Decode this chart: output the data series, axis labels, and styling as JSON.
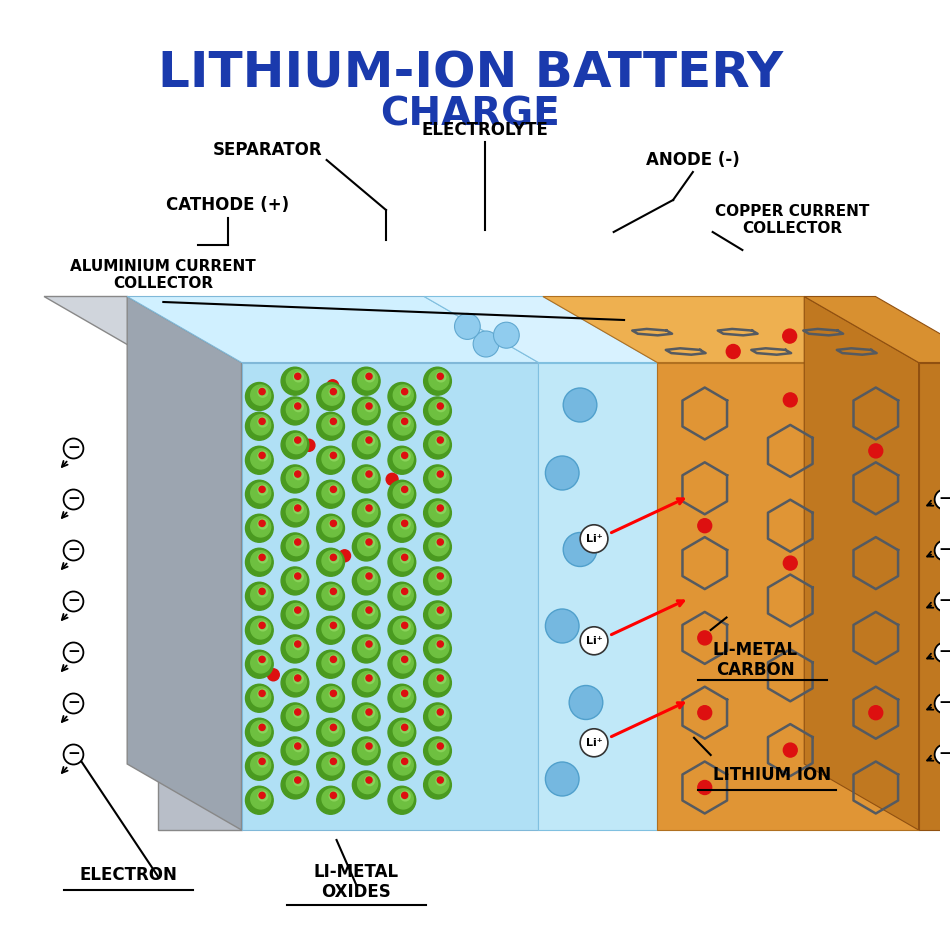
{
  "title_line1": "LITHIUM-ION BATTERY",
  "title_line2": "CHARGE",
  "title_color": "#1a3aad",
  "bg_color": "#ffffff",
  "label_separator": "SEPARATOR",
  "label_electrolyte": "ELECTROLYTE",
  "label_cathode": "CATHODE (+)",
  "label_al_collector": "ALUMINIUM CURRENT\nCOLLECTOR",
  "label_anode": "ANODE (-)",
  "label_cu_collector": "COPPER CURRENT\nCOLLECTOR",
  "label_electron": "ELECTRON",
  "label_li_oxides": "LI-METAL\nOXIDES",
  "label_li_carbon": "LI-METAL\nCARBON",
  "label_li_ion": "LITHIUM ION",
  "color_al_front": "#b8bec8",
  "color_al_top": "#d0d5dc",
  "color_al_side": "#9ca5b0",
  "color_cathode_face": "#90d060",
  "color_sep_face": "#a8ddf5",
  "color_sep_top": "#c8eeff",
  "color_sep_circles": "#70b8e0",
  "color_anode_face": "#e09535",
  "color_anode_top": "#eeb050",
  "color_copper_side": "#c07820",
  "color_hex": "#555a60",
  "color_red_dot": "#dd1010",
  "color_green_dark": "#4a9a20",
  "color_green_mid": "#6ec040",
  "color_green_light": "#90d860"
}
